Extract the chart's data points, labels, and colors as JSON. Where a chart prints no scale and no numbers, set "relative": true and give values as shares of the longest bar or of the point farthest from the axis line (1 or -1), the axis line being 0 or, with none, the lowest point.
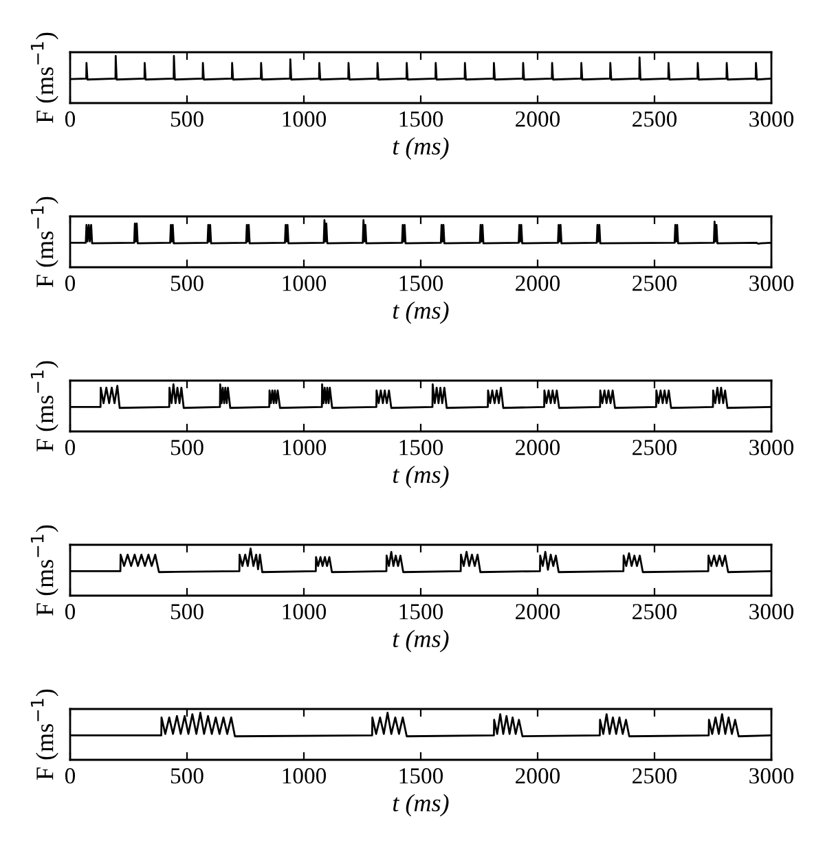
{
  "chart_data": [
    {
      "type": "line",
      "relative": true,
      "xlabel": "t (ms)",
      "ylabel": "F (ms$^{−1}$)",
      "color": "#000000",
      "xlim": [
        0,
        3000
      ],
      "xticks": [
        0,
        500,
        1000,
        1500,
        2000,
        2500,
        3000
      ],
      "tick_labels": "x",
      "x": [
        0,
        69,
        70,
        74,
        194,
        195,
        199,
        318,
        319,
        323,
        443,
        444,
        448,
        567,
        568,
        572,
        692,
        693,
        697,
        816,
        817,
        821,
        941,
        942,
        946,
        1065,
        1066,
        1070,
        1190,
        1191,
        1195,
        1314,
        1315,
        1319,
        1439,
        1440,
        1444,
        1563,
        1564,
        1568,
        1688,
        1689,
        1693,
        1812,
        1813,
        1817,
        1937,
        1938,
        1942,
        2061,
        2062,
        2066,
        2186,
        2187,
        2191,
        2310,
        2311,
        2315,
        2435,
        2436,
        2440,
        2559,
        2560,
        2564,
        2684,
        2685,
        2689,
        2808,
        2809,
        2813,
        2933,
        2934,
        2938,
        3000
      ],
      "values": [
        0.51,
        0.52,
        0.85,
        0.5,
        0.52,
        1,
        0.5,
        0.52,
        0.85,
        0.5,
        0.52,
        1,
        0.5,
        0.52,
        0.85,
        0.5,
        0.52,
        0.85,
        0.5,
        0.52,
        0.85,
        0.5,
        0.52,
        0.93,
        0.5,
        0.52,
        0.85,
        0.5,
        0.52,
        0.85,
        0.5,
        0.52,
        0.85,
        0.5,
        0.52,
        0.85,
        0.5,
        0.52,
        0.85,
        0.5,
        0.52,
        0.85,
        0.5,
        0.52,
        0.85,
        0.5,
        0.52,
        0.85,
        0.5,
        0.52,
        0.85,
        0.5,
        0.52,
        0.85,
        0.5,
        0.52,
        0.85,
        0.5,
        0.52,
        0.97,
        0.5,
        0.52,
        0.85,
        0.5,
        0.52,
        0.85,
        0.5,
        0.52,
        0.85,
        0.5,
        0.52,
        0.85,
        0.5,
        0.52
      ]
    },
    {
      "type": "line",
      "relative": true,
      "xlabel": "t (ms)",
      "ylabel": "F (ms$^{−1}$)",
      "color": "#000000",
      "xlim": [
        0,
        3000
      ],
      "xticks": [
        0,
        500,
        1000,
        1500,
        2000,
        2500,
        3000
      ],
      "tick_labels": "x",
      "x": [
        0,
        67,
        70,
        74,
        80,
        84,
        90,
        94,
        274,
        277,
        281,
        285,
        289,
        428,
        431,
        435,
        439,
        443,
        588,
        591,
        595,
        599,
        603,
        753,
        756,
        760,
        764,
        768,
        919,
        922,
        926,
        930,
        934,
        1085,
        1088,
        1092,
        1096,
        1100,
        1252,
        1255,
        1259,
        1263,
        1267,
        1420,
        1423,
        1427,
        1431,
        1435,
        1586,
        1589,
        1593,
        1597,
        1601,
        1753,
        1756,
        1760,
        1764,
        1768,
        1919,
        1922,
        1926,
        1930,
        1934,
        2087,
        2090,
        2094,
        2098,
        2102,
        2253,
        2256,
        2260,
        2264,
        2268,
        2586,
        2589,
        2593,
        2597,
        2601,
        2754,
        2757,
        2761,
        2765,
        2769,
        2935,
        2945,
        2955,
        3000
      ],
      "values": [
        0.52,
        0.52,
        0.9,
        0.55,
        0.9,
        0.55,
        0.9,
        0.51,
        0.52,
        0.93,
        0.55,
        0.93,
        0.51,
        0.52,
        0.9,
        0.55,
        0.9,
        0.51,
        0.52,
        0.9,
        0.55,
        0.9,
        0.51,
        0.52,
        0.9,
        0.55,
        0.9,
        0.51,
        0.52,
        0.9,
        0.55,
        0.9,
        0.51,
        0.52,
        1,
        0.55,
        0.93,
        0.51,
        0.52,
        1,
        0.55,
        0.9,
        0.51,
        0.52,
        0.9,
        0.55,
        0.9,
        0.51,
        0.52,
        0.9,
        0.55,
        0.9,
        0.51,
        0.52,
        0.9,
        0.55,
        0.9,
        0.51,
        0.52,
        0.9,
        0.55,
        0.9,
        0.51,
        0.52,
        0.9,
        0.55,
        0.9,
        0.51,
        0.52,
        0.9,
        0.55,
        0.9,
        0.51,
        0.52,
        0.9,
        0.55,
        0.9,
        0.51,
        0.52,
        0.97,
        0.55,
        0.9,
        0.51,
        0.52,
        0.5,
        0.51,
        0.52
      ]
    },
    {
      "type": "line",
      "relative": true,
      "xlabel": "t (ms)",
      "ylabel": "F (ms$^{−1}$)",
      "color": "#000000",
      "xlim": [
        0,
        3000
      ],
      "xticks": [
        0,
        500,
        1000,
        1500,
        2000,
        2500,
        3000
      ],
      "tick_labels": "x",
      "x": [
        0,
        130,
        131,
        143,
        155,
        167,
        178,
        190,
        202,
        212,
        424,
        425,
        434,
        442,
        451,
        459,
        468,
        476,
        486,
        641,
        642,
        648,
        653,
        659,
        664,
        670,
        675,
        685,
        852,
        853,
        859,
        865,
        871,
        876,
        882,
        888,
        898,
        1077,
        1078,
        1084,
        1089,
        1095,
        1100,
        1106,
        1111,
        1121,
        1310,
        1311,
        1320,
        1329,
        1338,
        1346,
        1355,
        1364,
        1374,
        1550,
        1551,
        1560,
        1568,
        1576,
        1584,
        1592,
        1601,
        1611,
        1787,
        1788,
        1797,
        1806,
        1816,
        1825,
        1834,
        1843,
        1853,
        2028,
        2029,
        2038,
        2047,
        2056,
        2064,
        2073,
        2082,
        2092,
        2267,
        2268,
        2277,
        2286,
        2295,
        2303,
        2312,
        2321,
        2331,
        2507,
        2508,
        2517,
        2526,
        2535,
        2543,
        2552,
        2561,
        2571,
        2750,
        2751,
        2760,
        2769,
        2777,
        2785,
        2794,
        2802,
        2812,
        3000
      ],
      "values": [
        0.52,
        0.52,
        0.93,
        0.6,
        0.93,
        0.6,
        0.93,
        0.6,
        0.97,
        0.5,
        0.52,
        0.93,
        0.6,
        1,
        0.6,
        0.93,
        0.6,
        0.93,
        0.5,
        0.52,
        1,
        0.6,
        0.93,
        0.6,
        0.93,
        0.6,
        0.93,
        0.5,
        0.52,
        0.87,
        0.6,
        0.87,
        0.6,
        0.87,
        0.6,
        0.87,
        0.5,
        0.52,
        1,
        0.6,
        0.93,
        0.6,
        0.93,
        0.6,
        0.93,
        0.5,
        0.52,
        0.87,
        0.6,
        0.87,
        0.6,
        0.87,
        0.6,
        0.87,
        0.5,
        0.52,
        1,
        0.6,
        0.93,
        0.6,
        0.93,
        0.6,
        0.93,
        0.5,
        0.52,
        0.87,
        0.6,
        0.87,
        0.6,
        0.87,
        0.6,
        0.93,
        0.5,
        0.52,
        0.87,
        0.6,
        0.87,
        0.6,
        0.87,
        0.6,
        0.87,
        0.5,
        0.52,
        0.87,
        0.6,
        0.87,
        0.6,
        0.87,
        0.6,
        0.87,
        0.5,
        0.52,
        0.87,
        0.6,
        0.87,
        0.6,
        0.87,
        0.6,
        0.87,
        0.5,
        0.52,
        0.87,
        0.6,
        0.93,
        0.6,
        0.93,
        0.6,
        0.87,
        0.5,
        0.52
      ]
    },
    {
      "type": "line",
      "relative": true,
      "xlabel": "t (ms)",
      "ylabel": "F (ms$^{−1}$)",
      "color": "#000000",
      "xlim": [
        0,
        3000
      ],
      "xticks": [
        0,
        500,
        1000,
        1500,
        2000,
        2500,
        3000
      ],
      "tick_labels": "x",
      "x": [
        0,
        215,
        216,
        231,
        246,
        261,
        276,
        290,
        305,
        320,
        335,
        349,
        364,
        380,
        724,
        725,
        737,
        749,
        760,
        772,
        784,
        796,
        804,
        812,
        822,
        1051,
        1052,
        1061,
        1071,
        1080,
        1090,
        1099,
        1109,
        1120,
        1353,
        1354,
        1364,
        1374,
        1383,
        1393,
        1403,
        1413,
        1425,
        1671,
        1672,
        1684,
        1696,
        1707,
        1719,
        1731,
        1743,
        1755,
        2010,
        2011,
        2022,
        2033,
        2044,
        2056,
        2067,
        2078,
        2090,
        2367,
        2368,
        2379,
        2391,
        2402,
        2414,
        2425,
        2437,
        2450,
        2730,
        2731,
        2743,
        2755,
        2766,
        2778,
        2790,
        2802,
        2815,
        3000
      ],
      "values": [
        0.52,
        0.52,
        0.87,
        0.63,
        0.87,
        0.63,
        0.87,
        0.63,
        0.87,
        0.63,
        0.87,
        0.63,
        0.87,
        0.5,
        0.52,
        0.87,
        0.63,
        0.87,
        0.63,
        1,
        0.63,
        0.87,
        0.56,
        0.87,
        0.5,
        0.52,
        0.82,
        0.63,
        0.82,
        0.63,
        0.82,
        0.63,
        0.82,
        0.5,
        0.52,
        0.85,
        0.63,
        0.93,
        0.63,
        0.85,
        0.63,
        0.85,
        0.5,
        0.52,
        0.87,
        0.63,
        0.93,
        0.63,
        0.87,
        0.63,
        0.87,
        0.5,
        0.52,
        0.85,
        0.63,
        0.93,
        0.55,
        0.87,
        0.63,
        0.85,
        0.5,
        0.52,
        0.85,
        0.63,
        0.9,
        0.63,
        0.85,
        0.63,
        0.85,
        0.5,
        0.52,
        0.85,
        0.63,
        0.85,
        0.63,
        0.85,
        0.63,
        0.85,
        0.5,
        0.52
      ]
    },
    {
      "type": "line",
      "relative": true,
      "xlabel": "t (ms)",
      "ylabel": "F (ms$^{−1}$)",
      "color": "#000000",
      "xlim": [
        0,
        3000
      ],
      "xticks": [
        0,
        500,
        1000,
        1500,
        2000,
        2500,
        3000
      ],
      "tick_labels": "x",
      "x": [
        0,
        390,
        391,
        407,
        424,
        440,
        457,
        473,
        490,
        506,
        523,
        540,
        557,
        573,
        590,
        606,
        623,
        639,
        656,
        672,
        689,
        705,
        1292,
        1293,
        1309,
        1326,
        1342,
        1358,
        1374,
        1391,
        1407,
        1423,
        1440,
        1813,
        1814,
        1827,
        1840,
        1853,
        1867,
        1880,
        1893,
        1906,
        1920,
        1935,
        2266,
        2267,
        2281,
        2295,
        2308,
        2322,
        2336,
        2350,
        2364,
        2378,
        2392,
        2732,
        2733,
        2747,
        2761,
        2775,
        2789,
        2803,
        2817,
        2831,
        2845,
        2860,
        3000
      ],
      "values": [
        0.52,
        0.52,
        0.9,
        0.55,
        0.9,
        0.55,
        0.93,
        0.55,
        0.93,
        0.55,
        0.97,
        0.55,
        1,
        0.55,
        0.93,
        0.55,
        0.9,
        0.55,
        0.9,
        0.55,
        0.9,
        0.5,
        0.52,
        0.9,
        0.55,
        0.9,
        0.55,
        1,
        0.55,
        0.9,
        0.55,
        0.9,
        0.5,
        0.52,
        0.85,
        0.55,
        0.97,
        0.55,
        0.93,
        0.55,
        0.9,
        0.55,
        0.85,
        0.5,
        0.52,
        0.85,
        0.55,
        0.97,
        0.55,
        0.9,
        0.55,
        0.9,
        0.55,
        0.85,
        0.5,
        0.52,
        0.85,
        0.55,
        0.9,
        0.55,
        0.97,
        0.55,
        0.9,
        0.55,
        0.85,
        0.5,
        0.52
      ]
    }
  ]
}
